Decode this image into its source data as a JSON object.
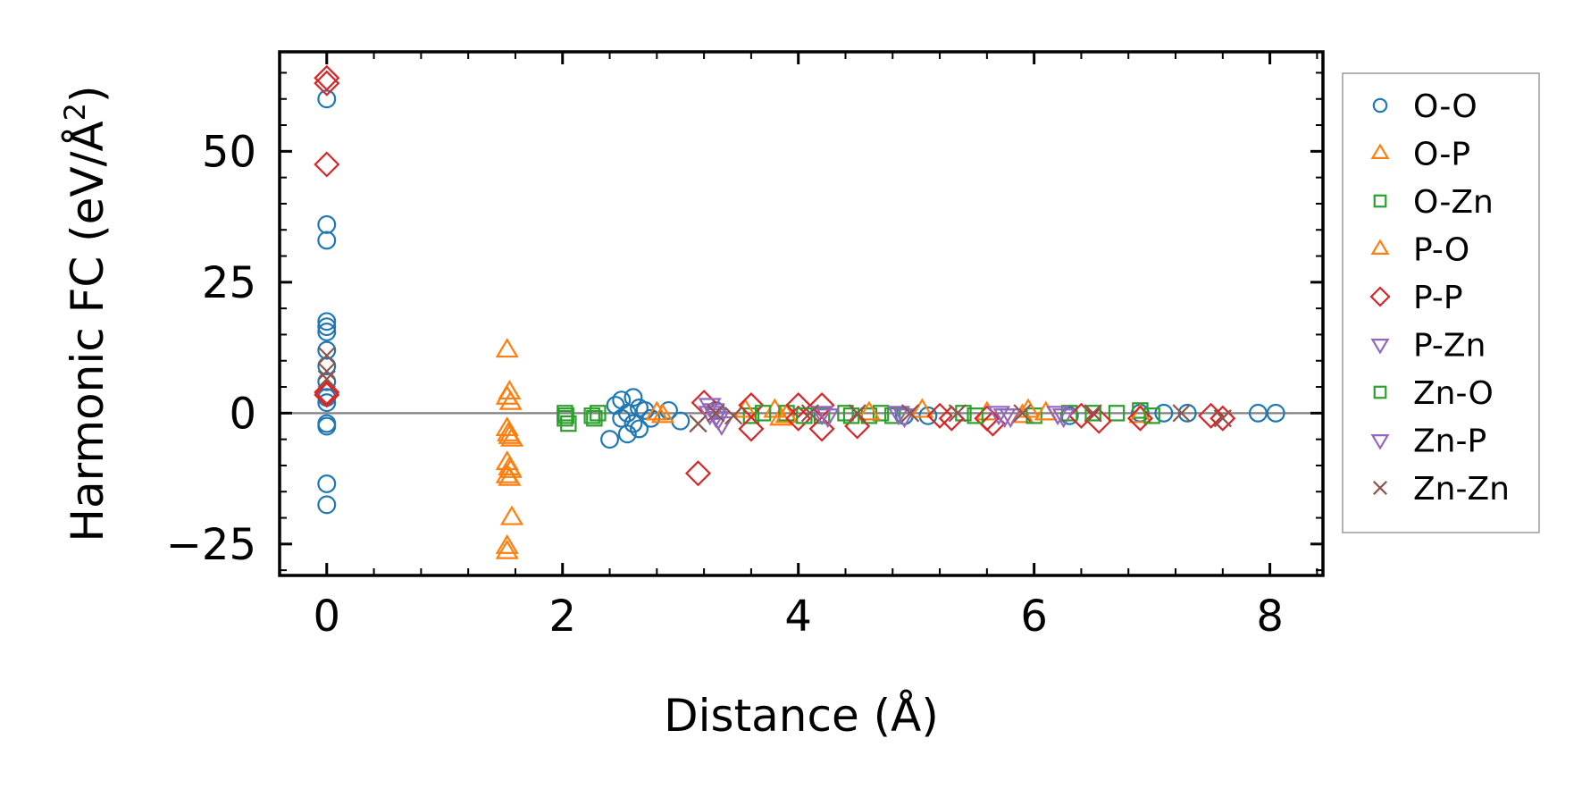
{
  "chart_data": {
    "type": "scatter",
    "title": "",
    "xlabel": "Distance (Å)",
    "ylabel_main": "Harmonic FC (eV/Å",
    "ylabel_sup": "2",
    "ylabel_close": ")",
    "xlim": [
      -0.4,
      8.45
    ],
    "ylim": [
      -31,
      69
    ],
    "xticks": [
      0,
      2,
      4,
      6,
      8
    ],
    "yticks": [
      -25,
      0,
      25,
      50
    ],
    "xtick_labels": [
      "0",
      "2",
      "4",
      "6",
      "8"
    ],
    "ytick_labels": [
      "−25",
      "0",
      "25",
      "50"
    ],
    "grid": false,
    "legend_position": "outside-right",
    "zero_line": 0,
    "series": [
      {
        "name": "O-O",
        "marker": "circle",
        "color": "#1f77b4",
        "points": [
          [
            0,
            60
          ],
          [
            0,
            36
          ],
          [
            0,
            33
          ],
          [
            0,
            17.5
          ],
          [
            0,
            16.5
          ],
          [
            0,
            15.5
          ],
          [
            0,
            12
          ],
          [
            0,
            9
          ],
          [
            0,
            6
          ],
          [
            0,
            3
          ],
          [
            0,
            2
          ],
          [
            0,
            -2
          ],
          [
            0,
            -2.5
          ],
          [
            0,
            -13.5
          ],
          [
            0,
            -17.5
          ],
          [
            2.4,
            -5
          ],
          [
            2.45,
            1.5
          ],
          [
            2.5,
            -1
          ],
          [
            2.5,
            2.5
          ],
          [
            2.55,
            -4
          ],
          [
            2.55,
            0
          ],
          [
            2.6,
            3
          ],
          [
            2.6,
            -2
          ],
          [
            2.65,
            1
          ],
          [
            2.65,
            -3
          ],
          [
            2.7,
            0.5
          ],
          [
            2.75,
            -1
          ],
          [
            2.9,
            0.5
          ],
          [
            3.0,
            -1.5
          ],
          [
            3.3,
            0.5
          ],
          [
            4.9,
            -0.5
          ],
          [
            5.1,
            -0.5
          ],
          [
            6.3,
            -0.5
          ],
          [
            6.9,
            0
          ],
          [
            7.1,
            0
          ],
          [
            7.3,
            0
          ],
          [
            7.9,
            0
          ],
          [
            8.05,
            0
          ]
        ]
      },
      {
        "name": "O-P",
        "marker": "triangle-up",
        "color": "#ff7f0e",
        "points": [
          [
            1.53,
            12
          ],
          [
            1.55,
            4
          ],
          [
            1.53,
            3
          ],
          [
            1.56,
            2
          ],
          [
            1.53,
            -3
          ],
          [
            1.55,
            -4.5
          ],
          [
            1.57,
            -5
          ],
          [
            1.53,
            -9.5
          ],
          [
            1.55,
            -10.5
          ],
          [
            1.53,
            -12
          ],
          [
            1.55,
            -12.5
          ],
          [
            1.57,
            -20
          ],
          [
            1.53,
            -25.5
          ],
          [
            1.53,
            -26.5
          ],
          [
            2.8,
            0
          ],
          [
            2.85,
            -0.5
          ],
          [
            3.8,
            0.5
          ],
          [
            3.85,
            -1
          ],
          [
            5.05,
            0.5
          ],
          [
            5.6,
            0
          ],
          [
            5.9,
            -0.5
          ]
        ]
      },
      {
        "name": "O-Zn",
        "marker": "square",
        "color": "#2ca02c",
        "points": [
          [
            2.02,
            0
          ],
          [
            2.02,
            -1
          ],
          [
            2.05,
            -2
          ],
          [
            2.25,
            -0.5
          ],
          [
            2.3,
            0
          ],
          [
            3.6,
            -0.5
          ],
          [
            3.9,
            0
          ],
          [
            4.2,
            -0.5
          ],
          [
            4.4,
            0
          ],
          [
            4.6,
            -0.5
          ],
          [
            4.7,
            0
          ],
          [
            4.8,
            -0.5
          ],
          [
            5.4,
            0
          ],
          [
            6.0,
            -0.5
          ],
          [
            6.3,
            0
          ],
          [
            6.7,
            0
          ],
          [
            6.9,
            0.5
          ]
        ]
      },
      {
        "name": "P-O",
        "marker": "triangle-up",
        "color": "#ff7f0e",
        "points": [
          [
            1.54,
            -4
          ],
          [
            1.56,
            -11
          ],
          [
            3.55,
            0.5
          ],
          [
            3.9,
            -0.5
          ],
          [
            4.6,
            0
          ],
          [
            5.95,
            0.5
          ],
          [
            6.1,
            0
          ],
          [
            6.9,
            -0.5
          ]
        ]
      },
      {
        "name": "P-P",
        "marker": "diamond",
        "color": "#d62728",
        "points": [
          [
            0,
            64
          ],
          [
            0,
            63
          ],
          [
            0,
            47.5
          ],
          [
            0,
            4
          ],
          [
            0,
            3.5
          ],
          [
            3.15,
            -11.5
          ],
          [
            3.2,
            2
          ],
          [
            3.6,
            1.5
          ],
          [
            3.6,
            -3
          ],
          [
            4.0,
            1.5
          ],
          [
            4.0,
            -1
          ],
          [
            4.2,
            1.5
          ],
          [
            4.2,
            -3
          ],
          [
            4.5,
            -2.5
          ],
          [
            5.2,
            -0.5
          ],
          [
            5.3,
            -1
          ],
          [
            5.6,
            -1
          ],
          [
            5.65,
            -2
          ],
          [
            6.4,
            -0.5
          ],
          [
            6.55,
            -1.5
          ],
          [
            6.9,
            -1
          ],
          [
            7.5,
            -0.5
          ],
          [
            7.6,
            -1
          ]
        ]
      },
      {
        "name": "P-Zn",
        "marker": "triangle-down",
        "color": "#9467bd",
        "points": [
          [
            3.25,
            1.5
          ],
          [
            3.3,
            -0.5
          ],
          [
            3.35,
            -2
          ],
          [
            3.25,
            0
          ],
          [
            4.2,
            0
          ],
          [
            4.85,
            0
          ],
          [
            5.7,
            0
          ],
          [
            5.75,
            -0.5
          ],
          [
            6.2,
            0
          ]
        ]
      },
      {
        "name": "Zn-O",
        "marker": "square",
        "color": "#2ca02c",
        "points": [
          [
            2.03,
            -0.5
          ],
          [
            2.27,
            -1
          ],
          [
            3.7,
            0
          ],
          [
            4.05,
            -0.5
          ],
          [
            4.45,
            -0.5
          ],
          [
            5.5,
            -0.5
          ],
          [
            6.5,
            0
          ],
          [
            7.0,
            -0.5
          ]
        ]
      },
      {
        "name": "Zn-P",
        "marker": "triangle-down",
        "color": "#9467bd",
        "points": [
          [
            3.28,
            0.5
          ],
          [
            3.32,
            -1
          ],
          [
            4.25,
            -0.5
          ],
          [
            4.9,
            -0.5
          ],
          [
            5.8,
            -0.5
          ],
          [
            6.25,
            -0.5
          ]
        ]
      },
      {
        "name": "Zn-Zn",
        "marker": "x",
        "color": "#8c564b",
        "points": [
          [
            0,
            11
          ],
          [
            0,
            8
          ],
          [
            0,
            6.5
          ],
          [
            3.15,
            -2
          ],
          [
            3.3,
            0
          ],
          [
            3.45,
            -0.5
          ],
          [
            4.1,
            0
          ],
          [
            4.5,
            0
          ],
          [
            4.95,
            0
          ],
          [
            5.35,
            0
          ],
          [
            5.9,
            0
          ],
          [
            6.5,
            0
          ],
          [
            7.25,
            0
          ],
          [
            7.6,
            -1
          ]
        ]
      }
    ]
  }
}
